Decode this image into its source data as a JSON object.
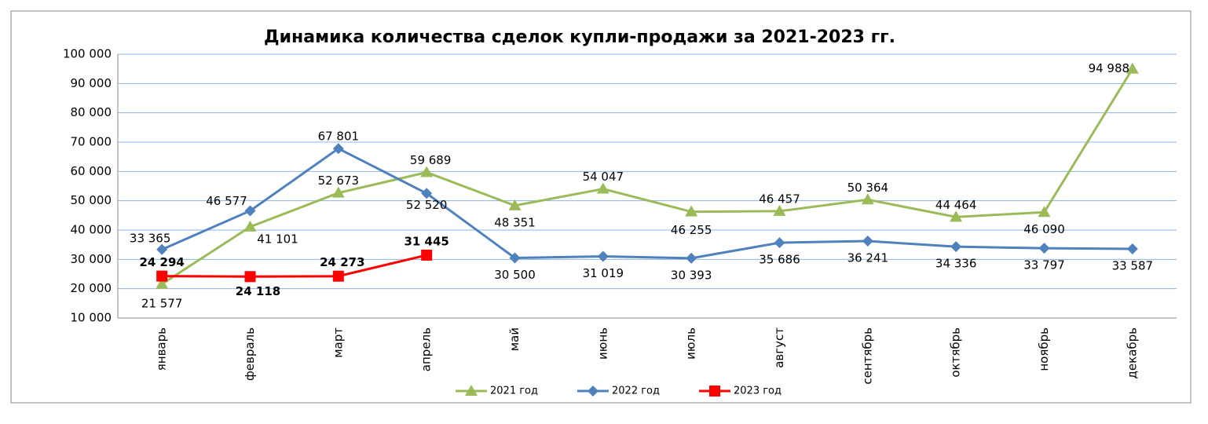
{
  "chart_data": {
    "type": "line",
    "title": "Динамика количества сделок купли-продажи за 2021-2023 гг.",
    "categories": [
      "январь",
      "февраль",
      "март",
      "апрель",
      "май",
      "июнь",
      "июль",
      "август",
      "сентябрь",
      "октябрь",
      "ноябрь",
      "декабрь"
    ],
    "series": [
      {
        "name": "2021 год",
        "color": "#9bbb59",
        "marker": "triangle",
        "values": [
          21577,
          41101,
          52673,
          59689,
          48351,
          54047,
          46255,
          46457,
          50364,
          44464,
          46090,
          94988
        ],
        "value_labels": [
          "21 577",
          "41 101",
          "52 673",
          "59 689",
          "48 351",
          "54 047",
          "46 255",
          "46 457",
          "50 364",
          "44 464",
          "46 090",
          "94 988"
        ]
      },
      {
        "name": "2022 год",
        "color": "#4f81bd",
        "marker": "diamond",
        "values": [
          33365,
          46577,
          67801,
          52520,
          30500,
          31019,
          30393,
          35686,
          36241,
          34336,
          33797,
          33587
        ],
        "value_labels": [
          "33 365",
          "46 577",
          "67 801",
          "52 520",
          "30 500",
          "31 019",
          "30 393",
          "35 686",
          "36 241",
          "34 336",
          "33 797",
          "33 587"
        ]
      },
      {
        "name": "2023 год",
        "color": "#ff0000",
        "marker": "square",
        "values": [
          24294,
          24118,
          24273,
          31445,
          null,
          null,
          null,
          null,
          null,
          null,
          null,
          null
        ],
        "value_labels": [
          "24 294",
          "24 118",
          "24 273",
          "31 445",
          null,
          null,
          null,
          null,
          null,
          null,
          null,
          null
        ]
      }
    ],
    "ylim": [
      10000,
      100000
    ],
    "yticks": [
      {
        "value": 10000,
        "label": "10 000"
      },
      {
        "value": 20000,
        "label": "20 000"
      },
      {
        "value": 30000,
        "label": "30 000"
      },
      {
        "value": 40000,
        "label": "40 000"
      },
      {
        "value": 50000,
        "label": "50 000"
      },
      {
        "value": 60000,
        "label": "60 000"
      },
      {
        "value": 70000,
        "label": "70 000"
      },
      {
        "value": 80000,
        "label": "80 000"
      },
      {
        "value": 90000,
        "label": "90 000"
      },
      {
        "value": 100000,
        "label": "100 000"
      }
    ],
    "grid": true,
    "legend": "bottom"
  }
}
